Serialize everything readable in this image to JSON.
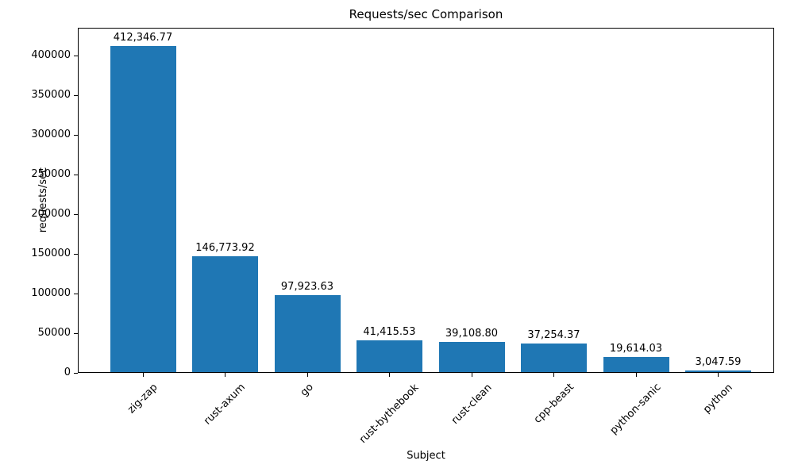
{
  "chart_data": {
    "type": "bar",
    "title": "Requests/sec Comparison",
    "xlabel": "Subject",
    "ylabel": "requests/sec",
    "categories": [
      "zig-zap",
      "rust-axum",
      "go",
      "rust-bythebook",
      "rust-clean",
      "cpp-beast",
      "python-sanic",
      "python"
    ],
    "values": [
      412346.77,
      146773.92,
      97923.63,
      41415.53,
      39108.8,
      37254.37,
      19614.03,
      3047.59
    ],
    "value_labels": [
      "412,346.77",
      "146,773.92",
      "97,923.63",
      "41,415.53",
      "39,108.80",
      "37,254.37",
      "19,614.03",
      "3,047.59"
    ],
    "yticks": [
      0,
      50000,
      100000,
      150000,
      200000,
      250000,
      300000,
      350000,
      400000
    ],
    "ylim": [
      0,
      435000
    ],
    "x_tick_rotation_deg": 45,
    "grid": false,
    "legend": null,
    "bar_color": "#1f77b4",
    "text_color": "#000000",
    "spine_color": "#000000",
    "background_color": "#ffffff"
  }
}
